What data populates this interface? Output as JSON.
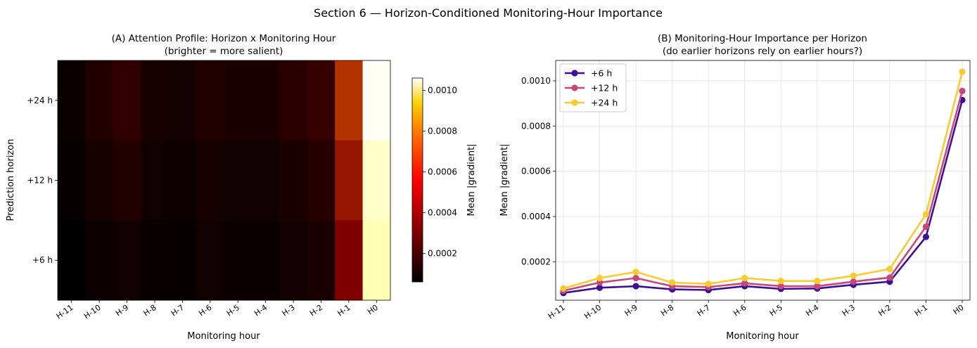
{
  "suptitle": "Section 6 — Horizon-Conditioned Monitoring-Hour Importance",
  "chart_data": [
    {
      "type": "heatmap",
      "title_line1": "(A) Attention Profile: Horizon x Monitoring Hour",
      "title_line2": "(brighter = more salient)",
      "xlabel": "Monitoring hour",
      "ylabel": "Prediction horizon",
      "x_categories": [
        "H-11",
        "H-10",
        "H-9",
        "H-8",
        "H-7",
        "H-6",
        "H-5",
        "H-4",
        "H-3",
        "H-2",
        "H-1",
        "H0"
      ],
      "y_categories": [
        "+24 h",
        "+12 h",
        "+6 h"
      ],
      "values": [
        [
          8.2e-05,
          0.000128,
          0.000155,
          0.000108,
          0.000102,
          0.000128,
          0.000115,
          0.000115,
          0.000138,
          0.000168,
          0.00041,
          0.00104
        ],
        [
          7.2e-05,
          0.000108,
          0.000128,
          9.2e-05,
          8.8e-05,
          0.000105,
          9.2e-05,
          9.2e-05,
          0.000112,
          0.00013,
          0.000355,
          0.000955
        ],
        [
          6.2e-05,
          8.5e-05,
          9.2e-05,
          7.8e-05,
          7.5e-05,
          9.2e-05,
          8e-05,
          8.2e-05,
          9.8e-05,
          0.000112,
          0.00031,
          0.000915
        ]
      ],
      "colormap": "afmhot",
      "colorbar": {
        "label": "Mean |gradient|",
        "vmin": 6e-05,
        "vmax": 0.00106,
        "ticks": [
          0.0002,
          0.0004,
          0.0006,
          0.0008,
          0.001
        ],
        "tick_labels": [
          "0.0002",
          "0.0004",
          "0.0006",
          "0.0008",
          "0.0010"
        ]
      }
    },
    {
      "type": "line",
      "title_line1": "(B) Monitoring-Hour Importance per Horizon",
      "title_line2": "(do earlier horizons rely on earlier hours?)",
      "xlabel": "Monitoring hour",
      "ylabel": "Mean |gradient|",
      "categories": [
        "H-11",
        "H-10",
        "H-9",
        "H-8",
        "H-7",
        "H-6",
        "H-5",
        "H-4",
        "H-3",
        "H-2",
        "H-1",
        "H0"
      ],
      "ylim": [
        3e-05,
        0.00109
      ],
      "yticks": [
        0.0002,
        0.0004,
        0.0006,
        0.0008,
        0.001
      ],
      "ytick_labels": [
        "0.0002",
        "0.0004",
        "0.0006",
        "0.0008",
        "0.0010"
      ],
      "grid": true,
      "legend_position": "top-left",
      "series": [
        {
          "name": "+6 h",
          "color": "#3d0f96",
          "values": [
            6.2e-05,
            8.5e-05,
            9.2e-05,
            7.8e-05,
            7.5e-05,
            9.2e-05,
            8e-05,
            8.2e-05,
            9.8e-05,
            0.000112,
            0.00031,
            0.000915
          ]
        },
        {
          "name": "+12 h",
          "color": "#c8467a",
          "values": [
            7.2e-05,
            0.000108,
            0.000128,
            9.2e-05,
            8.8e-05,
            0.000105,
            9.2e-05,
            9.2e-05,
            0.000112,
            0.00013,
            0.000355,
            0.000955
          ]
        },
        {
          "name": "+24 h",
          "color": "#f9cb2e",
          "values": [
            8.2e-05,
            0.000128,
            0.000155,
            0.000108,
            0.000102,
            0.000128,
            0.000115,
            0.000115,
            0.000138,
            0.000168,
            0.00041,
            0.00104
          ]
        }
      ]
    }
  ]
}
